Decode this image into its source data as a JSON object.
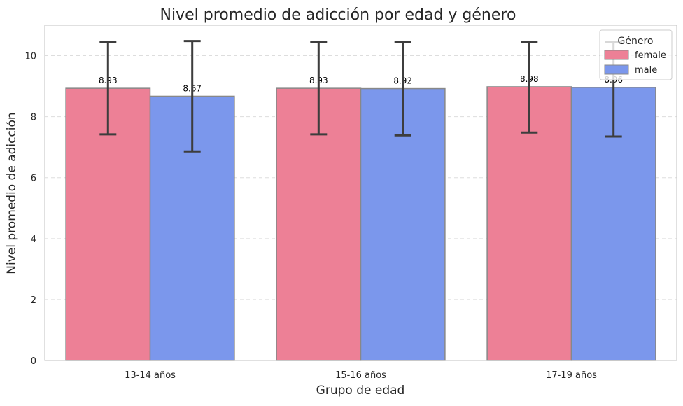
{
  "chart_data": {
    "type": "bar",
    "title": "Nivel promedio de adicción por edad y género",
    "xlabel": "Grupo de edad",
    "ylabel": "Nivel promedio de adicción",
    "categories": [
      "13-14 años",
      "15-16 años",
      "17-19 años"
    ],
    "ylim": [
      0,
      11
    ],
    "yticks": [
      0,
      2,
      4,
      6,
      8,
      10
    ],
    "grid": "horizontal dashed",
    "legend": {
      "title": "Género",
      "placement": "top-right"
    },
    "series": [
      {
        "name": "female",
        "color": "#ED8096",
        "values": [
          8.93,
          8.93,
          8.98
        ],
        "labels": [
          "8.93",
          "8.93",
          "8.98"
        ],
        "error_low": [
          7.42,
          7.42,
          7.48
        ],
        "error_high": [
          10.46,
          10.46,
          10.46
        ]
      },
      {
        "name": "male",
        "color": "#7B97EC",
        "values": [
          8.67,
          8.92,
          8.96
        ],
        "labels": [
          "8.67",
          "8.92",
          "8.96"
        ],
        "error_low": [
          6.86,
          7.39,
          7.35
        ],
        "error_high": [
          10.48,
          10.44,
          10.46
        ]
      }
    ]
  }
}
